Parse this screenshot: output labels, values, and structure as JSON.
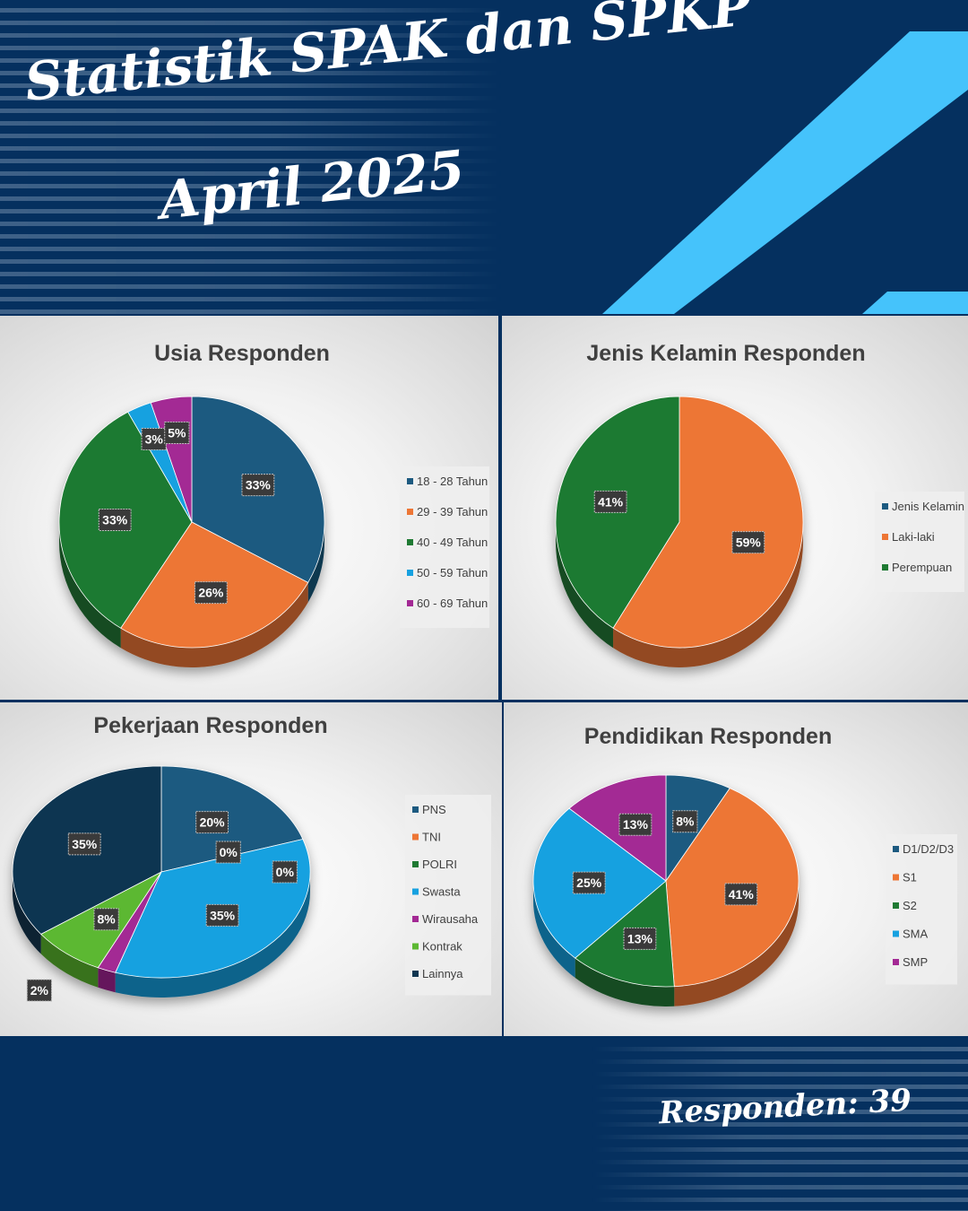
{
  "header": {
    "title_line1": "Statistik SPAK dan SPKP",
    "title_line2": "April 2025"
  },
  "footer": {
    "respondents": "Responden: 39"
  },
  "colors": {
    "background": "#05305f",
    "accent_cyan": "#45c3fb",
    "dark_blue": "#1c5a80",
    "orange": "#ed7635",
    "green": "#1f7a33",
    "light_blue": "#17a1e0",
    "magenta": "#a32994",
    "light_green": "#5cb832",
    "navy": "#0f3651"
  },
  "chart_data": [
    {
      "type": "pie",
      "title": "Usia Responden",
      "legend_position": "right",
      "categories": [
        "18 - 28 Tahun",
        "29 - 39 Tahun",
        "40 - 49 Tahun",
        "50 - 59 Tahun",
        "60 - 69 Tahun"
      ],
      "values": [
        33,
        26,
        33,
        3,
        5
      ],
      "labels": [
        "33%",
        "26%",
        "33%",
        "3%",
        "5%"
      ],
      "colors": [
        "#1c5a80",
        "#ed7635",
        "#1f7a33",
        "#17a1e0",
        "#a32994"
      ]
    },
    {
      "type": "pie",
      "title": "Jenis Kelamin Responden",
      "legend_position": "right",
      "legend": [
        "Jenis Kelamin",
        "Laki-laki",
        "Perempuan"
      ],
      "legend_colors": [
        "#1c5a80",
        "#ed7635",
        "#1f7a33"
      ],
      "categories": [
        "Laki-laki",
        "Perempuan"
      ],
      "values": [
        59,
        41
      ],
      "labels": [
        "59%",
        "41%"
      ],
      "colors": [
        "#ed7635",
        "#1f7a33"
      ]
    },
    {
      "type": "pie",
      "title": "Pekerjaan Responden",
      "legend_position": "right",
      "categories": [
        "PNS",
        "TNI",
        "POLRI",
        "Swasta",
        "Wirausaha",
        "Kontrak",
        "Lainnya"
      ],
      "values": [
        20,
        0,
        0,
        35,
        2,
        8,
        35
      ],
      "labels": [
        "20%",
        "0%",
        "0%",
        "35%",
        "2%",
        "8%",
        "35%"
      ],
      "colors": [
        "#1c5a80",
        "#ed7635",
        "#1f7a33",
        "#17a1e0",
        "#a32994",
        "#5cb832",
        "#0f3651"
      ]
    },
    {
      "type": "pie",
      "title": "Pendidikan Responden",
      "legend_position": "right",
      "categories": [
        "D1/D2/D3",
        "S1",
        "S2",
        "SMA",
        "SMP"
      ],
      "values": [
        8,
        41,
        13,
        25,
        13
      ],
      "labels": [
        "8%",
        "41%",
        "13%",
        "25%",
        "13%"
      ],
      "colors": [
        "#1c5a80",
        "#ed7635",
        "#1f7a33",
        "#17a1e0",
        "#a32994"
      ]
    }
  ]
}
